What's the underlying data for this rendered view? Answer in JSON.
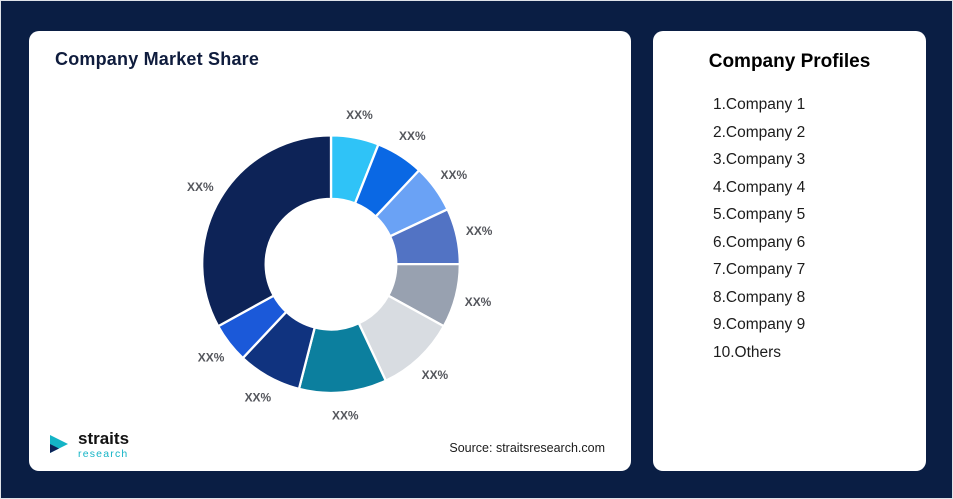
{
  "left_card": {
    "title": "Company Market Share",
    "source": "Source: straitsresearch.com"
  },
  "logo": {
    "name": "straits",
    "sub": "research"
  },
  "right_card": {
    "title": "Company Profiles",
    "items": [
      "1.Company 1",
      "2.Company 2",
      "3.Company 3",
      "4.Company 4",
      "5.Company 5",
      "6.Company 6",
      "7.Company 7",
      "8.Company 8",
      "9.Company 9",
      "10.Others"
    ]
  },
  "chart_data": {
    "type": "pie",
    "donut": true,
    "title": "Company Market Share",
    "labels": [
      "Company 1",
      "Company 2",
      "Company 3",
      "Company 4",
      "Company 5",
      "Company 6",
      "Company 7",
      "Company 8",
      "Company 9",
      "Others"
    ],
    "values": [
      6,
      6,
      6,
      7,
      8,
      10,
      11,
      8,
      5,
      33
    ],
    "display_labels": [
      "XX%",
      "XX%",
      "XX%",
      "XX%",
      "XX%",
      "XX%",
      "XX%",
      "XX%",
      "XX%",
      "XX%"
    ],
    "colors": [
      "#2fc3f7",
      "#0a68e4",
      "#6aa2f5",
      "#5273c4",
      "#98a1b0",
      "#d8dce1",
      "#0c7f9e",
      "#10337f",
      "#1b59d9",
      "#0d2357"
    ],
    "legend": false,
    "source": "Source: straitsresearch.com"
  }
}
